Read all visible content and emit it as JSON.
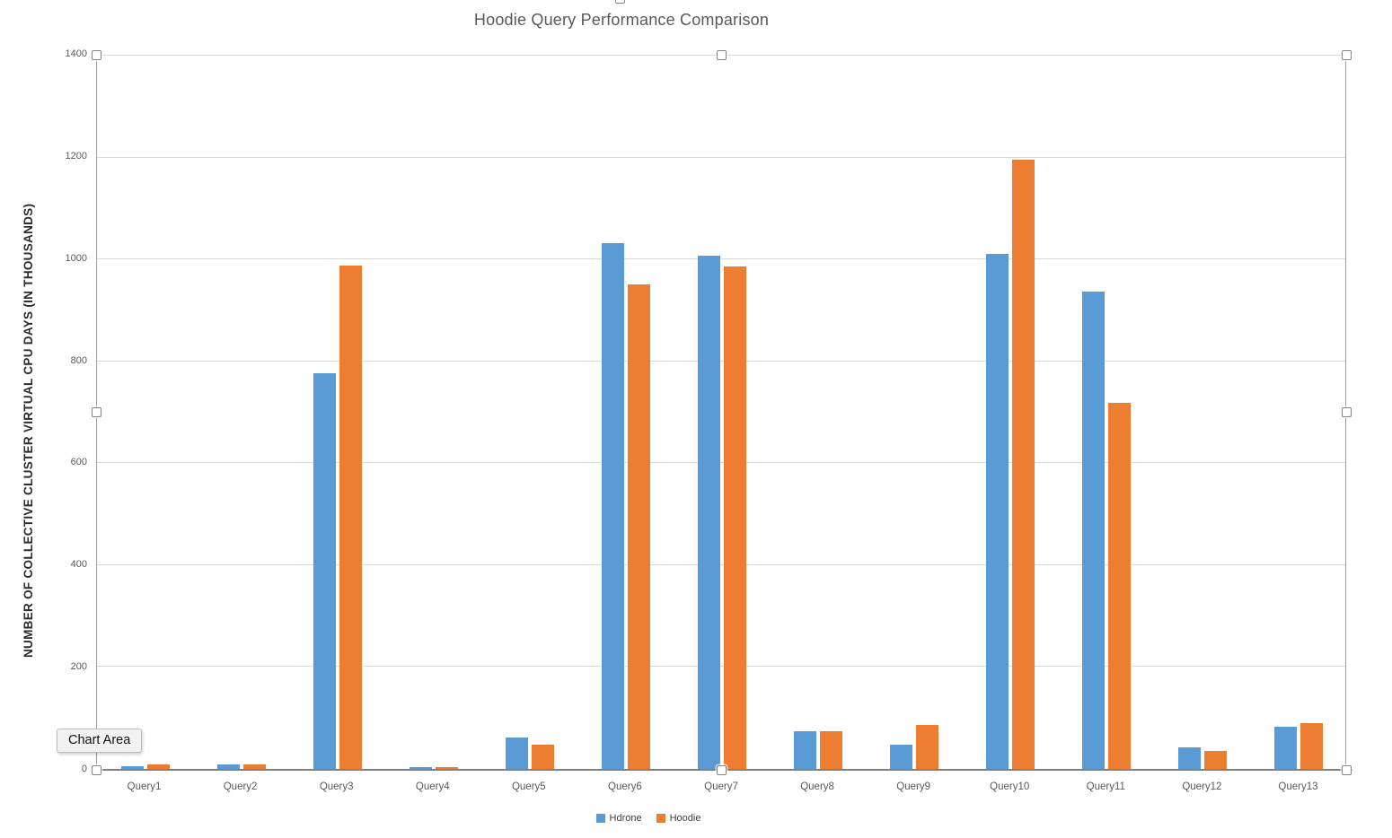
{
  "chart": {
    "tooltip": "Chart Area"
  },
  "chart_data": {
    "type": "bar",
    "title": "Hoodie Query Performance Comparison",
    "categories": [
      "Query1",
      "Query2",
      "Query3",
      "Query4",
      "Query5",
      "Query6",
      "Query7",
      "Query8",
      "Query9",
      "Query10",
      "Query11",
      "Query12",
      "Query13"
    ],
    "series": [
      {
        "name": "Hdrone",
        "color": "#5B9BD5",
        "values": [
          5,
          9,
          775,
          4,
          61,
          1030,
          1005,
          74,
          47,
          1009,
          935,
          43,
          82
        ]
      },
      {
        "name": "Hoodie",
        "color": "#ED7D31",
        "values": [
          8,
          8,
          985,
          4,
          48,
          949,
          984,
          74,
          86,
          1193,
          717,
          35,
          90
        ]
      }
    ],
    "xlabel": "",
    "ylabel": "NUMBER OF COLLECTIVE CLUSTER VIRTUAL CPU DAYS (IN THOUSANDS)",
    "ylim": [
      0,
      1400
    ],
    "ytick_step": 200,
    "grid": true,
    "legend_position": "bottom"
  },
  "colors": {
    "series_hdrone": "#5B9BD5",
    "series_hoodie": "#ED7D31",
    "gridline": "#D9D9D9",
    "axis_line": "#808080",
    "title_text": "#595959",
    "tick_text": "#595959"
  }
}
